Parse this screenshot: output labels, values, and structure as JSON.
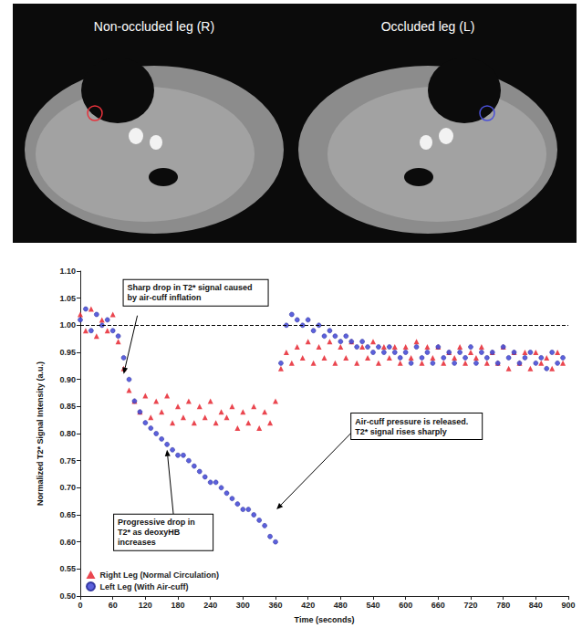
{
  "header_panel": {
    "labels": [
      "Non-occluded leg (R)",
      "Occluded leg (L)"
    ]
  },
  "chart_data": {
    "type": "scatter",
    "xlabel": "Time (seconds)",
    "ylabel": "Normalized T2* Signal Intensity (a.u.)",
    "xlim": [
      0,
      900
    ],
    "xticks": [
      0,
      60,
      120,
      180,
      240,
      300,
      360,
      420,
      480,
      540,
      600,
      660,
      720,
      780,
      840,
      900
    ],
    "ylim": [
      0.5,
      1.1
    ],
    "yticks": [
      {
        "value": 0.5,
        "label": "0.50"
      },
      0.55,
      {
        "value": 0.6,
        "label": "0.60"
      },
      0.65,
      {
        "value": 0.7,
        "label": "0.70"
      },
      0.75,
      {
        "value": 0.8,
        "label": "0.80"
      },
      0.85,
      {
        "value": 0.9,
        "label": "0.90"
      },
      0.95,
      {
        "value": 1.0,
        "label": "1.00"
      },
      1.05,
      {
        "value": 1.1,
        "label": "1.10"
      }
    ],
    "grid": false,
    "legend": "lower left",
    "reference_lines": [
      {
        "value": 1.0,
        "line_style": "dashed"
      }
    ],
    "x": [
      0,
      10,
      20,
      30,
      40,
      50,
      60,
      70,
      80,
      90,
      100,
      110,
      120,
      130,
      140,
      150,
      160,
      170,
      180,
      190,
      200,
      210,
      220,
      230,
      240,
      250,
      260,
      270,
      280,
      290,
      300,
      310,
      320,
      330,
      340,
      350,
      360,
      370,
      380,
      390,
      400,
      410,
      420,
      430,
      440,
      450,
      460,
      470,
      480,
      490,
      500,
      510,
      520,
      530,
      540,
      550,
      560,
      570,
      580,
      590,
      600,
      610,
      620,
      630,
      640,
      650,
      660,
      670,
      680,
      690,
      700,
      710,
      720,
      730,
      740,
      750,
      760,
      770,
      780,
      790,
      800,
      810,
      820,
      830,
      840,
      850,
      860,
      870,
      880,
      890
    ],
    "series": [
      {
        "name": "Right Leg (Normal Circulation)",
        "color": "#e8323c",
        "marker": "triangle",
        "values": [
          1.02,
          0.99,
          1.03,
          0.98,
          1.01,
          0.99,
          1.02,
          0.97,
          0.92,
          0.88,
          0.86,
          0.84,
          0.87,
          0.83,
          0.86,
          0.84,
          0.87,
          0.82,
          0.85,
          0.83,
          0.86,
          0.82,
          0.85,
          0.83,
          0.86,
          0.82,
          0.84,
          0.83,
          0.85,
          0.81,
          0.84,
          0.82,
          0.85,
          0.81,
          0.84,
          0.82,
          0.86,
          0.92,
          0.95,
          0.93,
          0.96,
          0.94,
          0.97,
          0.93,
          0.96,
          0.94,
          0.97,
          0.93,
          0.96,
          0.94,
          0.97,
          0.93,
          0.96,
          0.94,
          0.97,
          0.93,
          0.96,
          0.94,
          0.96,
          0.93,
          0.96,
          0.94,
          0.97,
          0.93,
          0.96,
          0.94,
          0.96,
          0.93,
          0.95,
          0.94,
          0.96,
          0.93,
          0.95,
          0.94,
          0.96,
          0.93,
          0.95,
          0.93,
          0.96,
          0.92,
          0.95,
          0.93,
          0.95,
          0.92,
          0.95,
          0.93,
          0.94,
          0.92,
          0.95,
          0.93
        ]
      },
      {
        "name": "Left Leg (With Air-cuff)",
        "color": "#4a50d8",
        "marker": "circle",
        "values": [
          1.01,
          1.03,
          0.99,
          1.02,
          1.0,
          1.01,
          0.99,
          0.98,
          0.94,
          0.9,
          0.86,
          0.84,
          0.82,
          0.81,
          0.8,
          0.79,
          0.78,
          0.77,
          0.76,
          0.76,
          0.75,
          0.74,
          0.73,
          0.72,
          0.71,
          0.71,
          0.7,
          0.69,
          0.68,
          0.67,
          0.66,
          0.66,
          0.65,
          0.64,
          0.63,
          0.61,
          0.6,
          0.93,
          1.0,
          1.02,
          1.01,
          1.0,
          1.01,
          0.99,
          1.0,
          0.98,
          0.99,
          0.98,
          0.97,
          0.98,
          0.97,
          0.96,
          0.97,
          0.96,
          0.95,
          0.96,
          0.95,
          0.96,
          0.95,
          0.94,
          0.95,
          0.93,
          0.96,
          0.94,
          0.95,
          0.93,
          0.96,
          0.94,
          0.95,
          0.93,
          0.95,
          0.94,
          0.96,
          0.93,
          0.95,
          0.94,
          0.95,
          0.93,
          0.96,
          0.94,
          0.95,
          0.93,
          0.94,
          0.95,
          0.93,
          0.94,
          0.92,
          0.95,
          0.93,
          0.94
        ]
      }
    ],
    "annotations": [
      {
        "text": "Sharp drop in T2* signal caused by air-cuff inflation",
        "x": 80,
        "y": 0.91
      },
      {
        "text": "Progressive drop in T2* as deoxyHB increases",
        "x": 160,
        "y": 0.77
      },
      {
        "text": "Air-cuff pressure is released. T2* signal rises sharply",
        "x": 362,
        "y": 0.66
      }
    ]
  }
}
